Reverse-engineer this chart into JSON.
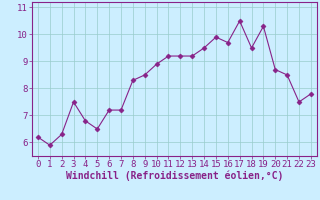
{
  "x": [
    0,
    1,
    2,
    3,
    4,
    5,
    6,
    7,
    8,
    9,
    10,
    11,
    12,
    13,
    14,
    15,
    16,
    17,
    18,
    19,
    20,
    21,
    22,
    23
  ],
  "y": [
    6.2,
    5.9,
    6.3,
    7.5,
    6.8,
    6.5,
    7.2,
    7.2,
    8.3,
    8.5,
    8.9,
    9.2,
    9.2,
    9.2,
    9.5,
    9.9,
    9.7,
    10.5,
    9.5,
    10.3,
    8.7,
    8.5,
    7.5,
    7.8
  ],
  "line_color": "#882288",
  "marker": "D",
  "marker_size": 2.5,
  "bg_color": "#cceeff",
  "grid_color": "#99cccc",
  "xlabel": "Windchill (Refroidissement éolien,°C)",
  "xlabel_color": "#882288",
  "xlabel_fontsize": 7,
  "tick_color": "#882288",
  "tick_fontsize": 6.5,
  "ylim": [
    5.5,
    11.2
  ],
  "xlim": [
    -0.5,
    23.5
  ],
  "yticks": [
    6,
    7,
    8,
    9,
    10,
    11
  ],
  "xticks": [
    0,
    1,
    2,
    3,
    4,
    5,
    6,
    7,
    8,
    9,
    10,
    11,
    12,
    13,
    14,
    15,
    16,
    17,
    18,
    19,
    20,
    21,
    22,
    23
  ]
}
